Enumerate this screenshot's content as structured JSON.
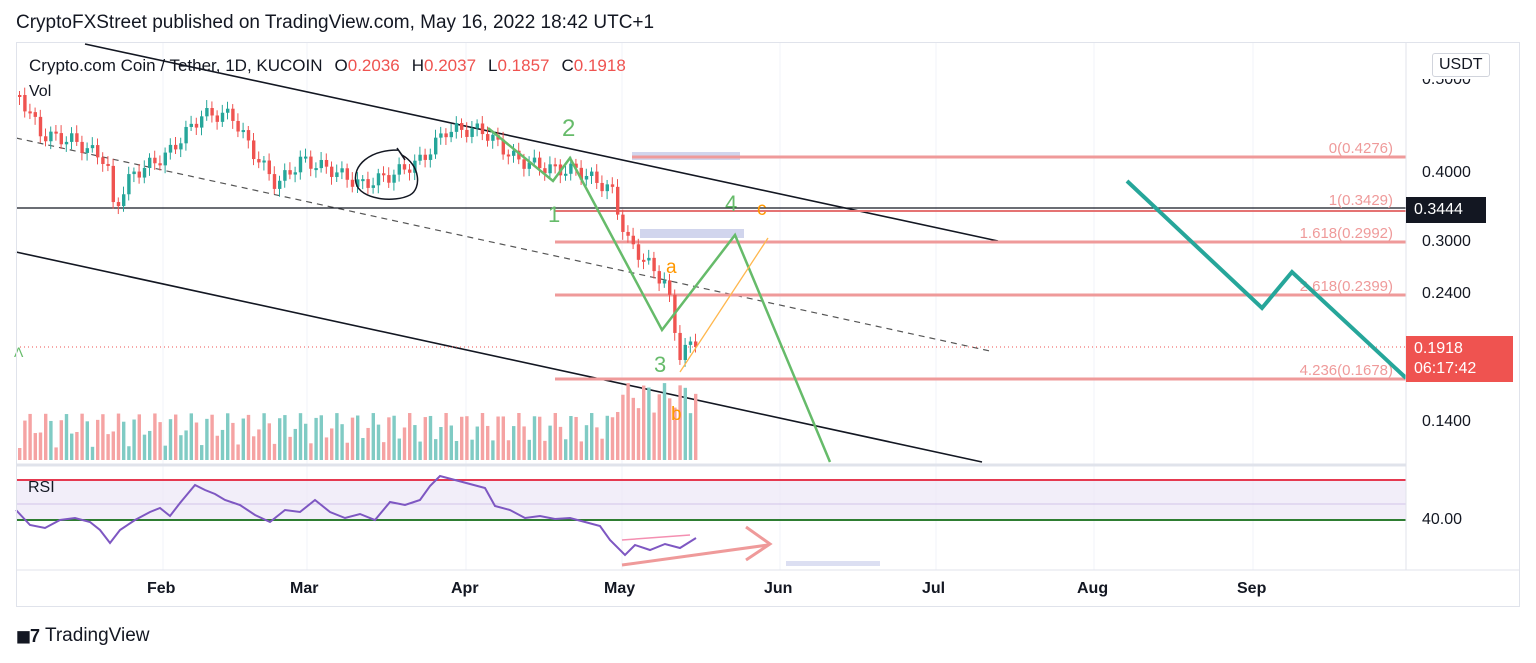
{
  "header": {
    "published_by": "CryptoFXStreet published on TradingView.com, May 16, 2022 18:42 UTC+1"
  },
  "legend": {
    "symbol": "Crypto.com Coin / Tether, 1D, KUCOIN",
    "open_label": "O",
    "open": "0.2036",
    "high_label": "H",
    "high": "0.2037",
    "low_label": "L",
    "low": "0.1857",
    "close_label": "C",
    "close": "0.1918"
  },
  "indicators": {
    "volume": "Vol",
    "rsi": "RSI"
  },
  "currency_button": "USDT",
  "price_axis": {
    "labels": [
      "0.4000",
      "0.3000",
      "0.2400",
      "0.1400"
    ],
    "top_partial": "0.5000",
    "rsi_label": "40.00"
  },
  "current_price": {
    "value": "0.1918",
    "countdown": "06:17:42"
  },
  "marked_price": "0.3444",
  "time_axis": [
    "Feb",
    "Mar",
    "Apr",
    "May",
    "Jun",
    "Jul",
    "Aug",
    "Sep"
  ],
  "fib_levels": [
    "0(0.4276)",
    "1(0.3429)",
    "1.618(0.2992)",
    "2.618(0.2399)",
    "4.236(0.1678)"
  ],
  "wave_labels": {
    "impulse": [
      "1",
      "2",
      "3",
      "4"
    ],
    "correction": [
      "a",
      "b",
      "c"
    ]
  },
  "colors": {
    "up": "#26a69a",
    "down": "#ef5350",
    "wave_green": "#66bb6a",
    "wave_orange": "#ff9800",
    "fib": "#ef9a9a",
    "rsi": "#7e57c2",
    "projection": "#26a69a"
  },
  "brand": "TradingView",
  "chart_data": {
    "type": "candlestick",
    "title": "Crypto.com Coin / Tether, 1D, KUCOIN",
    "x_labels": [
      "Feb",
      "Mar",
      "Apr",
      "May",
      "Jun",
      "Jul",
      "Aug",
      "Sep"
    ],
    "y_ticks": [
      0.14,
      0.24,
      0.3,
      0.4
    ],
    "ohlc_last": {
      "open": 0.2036,
      "high": 0.2037,
      "low": 0.1857,
      "close": 0.1918
    },
    "fibonacci": [
      {
        "ratio": 0,
        "price": 0.4276
      },
      {
        "ratio": 1,
        "price": 0.3429
      },
      {
        "ratio": 1.618,
        "price": 0.2992
      },
      {
        "ratio": 2.618,
        "price": 0.2399
      },
      {
        "ratio": 4.236,
        "price": 0.1678
      }
    ],
    "horizontal_line": 0.3444,
    "rsi_level": 40.0
  }
}
